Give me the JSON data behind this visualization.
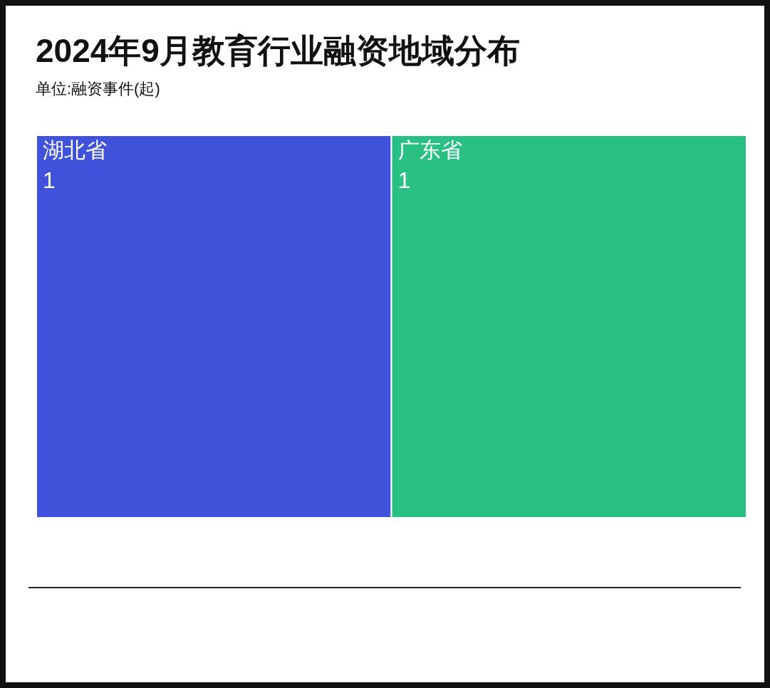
{
  "chart_data": {
    "type": "other",
    "title": "2024年9月教育行业融资地域分布",
    "subtitle": "单位:融资事件(起)",
    "categories": [
      "湖北省",
      "广东省"
    ],
    "values": [
      1,
      1
    ],
    "colors": [
      "#4152da",
      "#2bc083"
    ],
    "data_labels": true
  }
}
